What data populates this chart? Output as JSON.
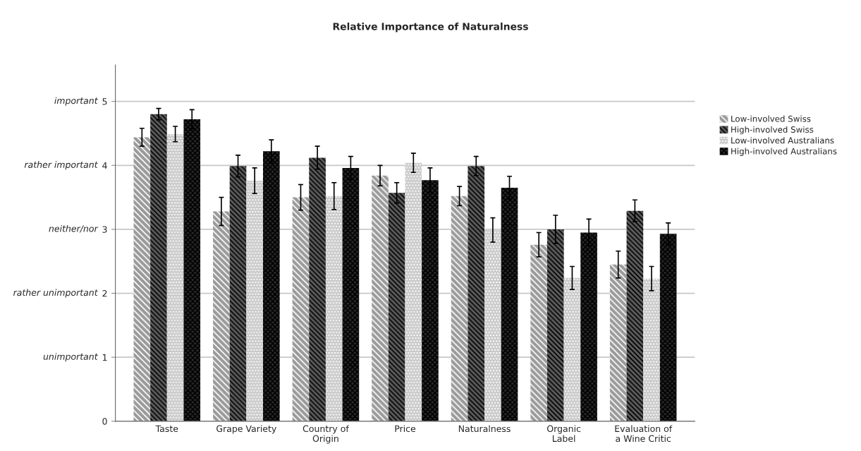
{
  "chart_data": {
    "type": "bar",
    "title": "Relative Importance of Naturalness",
    "categories": [
      "Taste",
      "Grape Variety",
      "Country of\nOrigin",
      "Price",
      "Naturalness",
      "Organic\nLabel",
      "Evaluation of\na Wine Critic"
    ],
    "series": [
      {
        "name": "Low-involved Swiss",
        "color": "#9a9a9a",
        "values": [
          4.44,
          3.28,
          3.5,
          3.84,
          3.52,
          2.76,
          2.45
        ],
        "errors": [
          0.14,
          0.22,
          0.2,
          0.16,
          0.15,
          0.19,
          0.21
        ]
      },
      {
        "name": "High-involved Swiss",
        "color": "#5c5c5c",
        "values": [
          4.8,
          3.99,
          4.12,
          3.57,
          3.99,
          3.0,
          3.29
        ],
        "errors": [
          0.09,
          0.17,
          0.18,
          0.16,
          0.15,
          0.22,
          0.17
        ]
      },
      {
        "name": "Low-involved Australians",
        "color": "#c8c8c8",
        "values": [
          4.49,
          3.76,
          3.52,
          4.04,
          2.99,
          2.24,
          2.23
        ],
        "errors": [
          0.12,
          0.2,
          0.21,
          0.15,
          0.19,
          0.18,
          0.19
        ]
      },
      {
        "name": "High-involved Australians",
        "color": "#2a2a2a",
        "values": [
          4.72,
          4.22,
          3.96,
          3.77,
          3.65,
          2.95,
          2.93
        ],
        "errors": [
          0.15,
          0.18,
          0.18,
          0.19,
          0.18,
          0.21,
          0.17
        ]
      }
    ],
    "ylim": [
      0,
      5.57
    ],
    "yticks": [
      0,
      1,
      2,
      3,
      4,
      5
    ],
    "annotations": [
      "unimportant",
      "rather unimportant",
      "neither/nor",
      "rather important",
      "important"
    ],
    "grid": "y",
    "legend": "right"
  }
}
